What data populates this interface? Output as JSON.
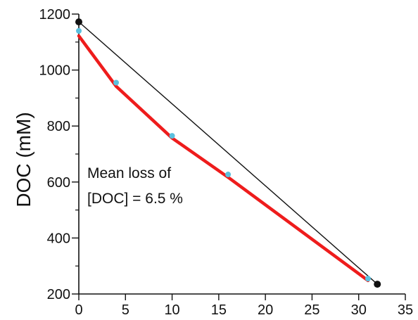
{
  "chart_data": {
    "type": "line",
    "title": "",
    "xlabel": "",
    "ylabel": "DOC (mM)",
    "xlim": [
      0,
      35
    ],
    "ylim": [
      200,
      1200
    ],
    "x_ticks": [
      0,
      5,
      10,
      15,
      20,
      25,
      30,
      35
    ],
    "y_ticks": [
      200,
      400,
      600,
      800,
      1000,
      1200
    ],
    "y_minor_ticks": [
      300,
      500,
      700,
      900,
      1100
    ],
    "grid": false,
    "annotation": [
      "Mean loss of",
      "[DOC] = 6.5 %"
    ],
    "series": [
      {
        "style": "line",
        "color": "#111111",
        "marker_color": "#111111",
        "points": [
          {
            "x": 0,
            "y": 1172
          },
          {
            "x": 32,
            "y": 235
          }
        ]
      },
      {
        "style": "line",
        "color": "#ee1c1c",
        "points": [
          {
            "x": 0,
            "y": 1122
          },
          {
            "x": 4,
            "y": 942
          },
          {
            "x": 10,
            "y": 757
          },
          {
            "x": 16,
            "y": 617
          },
          {
            "x": 31,
            "y": 248
          }
        ]
      },
      {
        "style": "scatter",
        "marker_color": "#5bc0de",
        "points": [
          {
            "x": 0,
            "y": 1140
          },
          {
            "x": 4,
            "y": 955
          },
          {
            "x": 10,
            "y": 765
          },
          {
            "x": 16,
            "y": 627
          },
          {
            "x": 31,
            "y": 255
          }
        ]
      }
    ]
  }
}
